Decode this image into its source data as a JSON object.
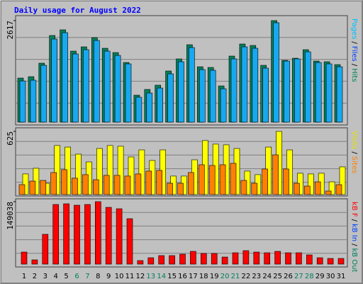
{
  "title": "Daily usage for August 2022",
  "chart_data": [
    {
      "type": "bar",
      "ylim": [
        0,
        2617
      ],
      "yticks": [
        2617
      ],
      "legend": [
        {
          "text": "Pages",
          "color": "#00c0ff"
        },
        {
          "text": "Files",
          "color": "#0040ff"
        },
        {
          "text": "Hits",
          "color": "#00805c"
        }
      ],
      "legend_separator": "/",
      "series": [
        {
          "color": "#00805c",
          "values": [
            1135,
            1171,
            1519,
            2233,
            2379,
            1830,
            1940,
            2178,
            1903,
            1793,
            1537,
            695,
            842,
            952,
            1318,
            1629,
            1995,
            1427,
            1409,
            933,
            1702,
            2013,
            1976,
            1464,
            2617,
            1592,
            1647,
            1867,
            1574,
            1556,
            1482
          ]
        },
        {
          "color": "#18a8f0",
          "values": [
            1061,
            1080,
            1464,
            2141,
            2306,
            1757,
            1867,
            2105,
            1830,
            1720,
            1501,
            641,
            750,
            878,
            1244,
            1556,
            1922,
            1354,
            1336,
            860,
            1629,
            1940,
            1903,
            1391,
            2562,
            1574,
            1629,
            1812,
            1537,
            1501,
            1427
          ]
        }
      ]
    },
    {
      "type": "bar",
      "ylim": [
        0,
        625
      ],
      "yticks": [
        625
      ],
      "legend": [
        {
          "text": "Visits",
          "color": "#e0e000"
        },
        {
          "text": "Sites",
          "color": "#ff8000"
        }
      ],
      "legend_separator": "/",
      "series": [
        {
          "color": "#ffff00",
          "values": [
            204,
            260,
            112,
            485,
            470,
            400,
            323,
            456,
            485,
            478,
            372,
            442,
            337,
            442,
            183,
            183,
            344,
            534,
            499,
            492,
            456,
            232,
            197,
            470,
            625,
            442,
            211,
            204,
            211,
            126,
            274
          ]
        },
        {
          "color": "#ff8000",
          "values": [
            98,
            133,
            140,
            218,
            246,
            162,
            197,
            147,
            190,
            190,
            183,
            204,
            232,
            239,
            112,
            112,
            218,
            295,
            288,
            295,
            309,
            140,
            112,
            253,
            393,
            253,
            112,
            84,
            126,
            35,
            98
          ]
        }
      ]
    },
    {
      "type": "bar",
      "ylim": [
        0,
        149038
      ],
      "yticks": [
        149038
      ],
      "legend": [
        {
          "text": "kB F",
          "color": "#ff0000"
        },
        {
          "text": "kB In",
          "color": "#0040ff"
        },
        {
          "text": "kB Out",
          "color": "#00805c"
        }
      ],
      "legend_separator": "/",
      "categories": [
        "1",
        "2",
        "3",
        "4",
        "5",
        "6",
        "7",
        "8",
        "9",
        "10",
        "11",
        "12",
        "13",
        "14",
        "15",
        "16",
        "17",
        "18",
        "19",
        "20",
        "21",
        "22",
        "23",
        "24",
        "25",
        "26",
        "27",
        "28",
        "29",
        "30",
        "31"
      ],
      "weekend_indices": [
        5,
        6,
        12,
        13,
        19,
        20,
        26,
        27
      ],
      "weekend_color": "#00805c",
      "series": [
        {
          "color": "#ff0000",
          "values": [
            28791,
            10162,
            71132,
            142264,
            143958,
            140570,
            142264,
            149038,
            135489,
            132102,
            108392,
            8468,
            15243,
            20323,
            20323,
            23711,
            30486,
            25404,
            25404,
            16936,
            27098,
            32179,
            28791,
            27098,
            30486,
            27098,
            27098,
            22017,
            15243,
            13549,
            13549
          ]
        }
      ]
    }
  ]
}
